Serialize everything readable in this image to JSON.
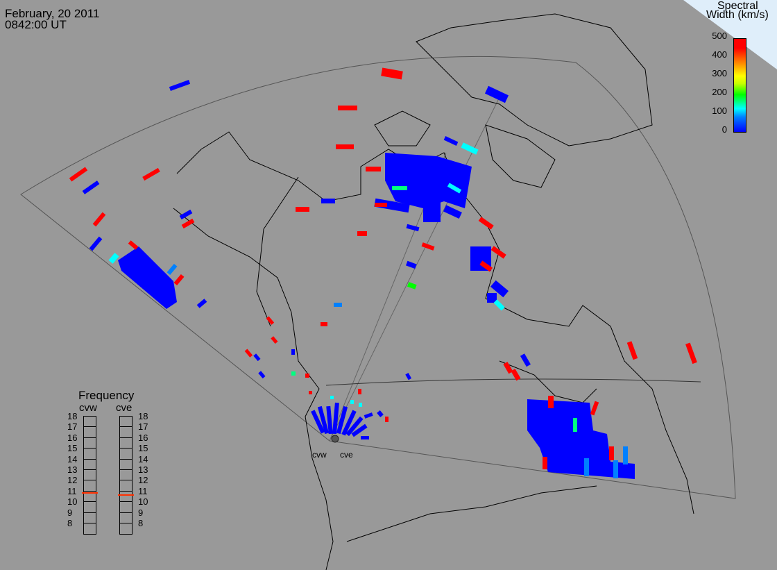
{
  "header": {
    "date": "February, 20 2011",
    "time": "0842:00 UT"
  },
  "colorbar": {
    "title_line1": "Spectral",
    "title_line2": "Width (km/s)",
    "ticks": [
      "500",
      "400",
      "300",
      "200",
      "100",
      "0"
    ]
  },
  "frequency": {
    "title": "Frequency",
    "radars": [
      {
        "label": "cvw",
        "value_mhz": 10.8
      },
      {
        "label": "cve",
        "value_mhz": 10.6
      }
    ],
    "scale": [
      "18",
      "17",
      "16",
      "15",
      "14",
      "13",
      "12",
      "11",
      "10",
      "9",
      "8"
    ]
  },
  "radar_sites": [
    {
      "label": "cvw"
    },
    {
      "label": "cve"
    }
  ],
  "colors": {
    "background": "#999999",
    "low": "#0000ff",
    "mid": "#00ffff",
    "high": "#ff0000"
  }
}
